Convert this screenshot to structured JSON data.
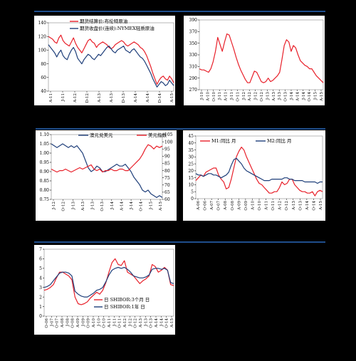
{
  "separators": [
    "sep-top",
    "sep-mid",
    "sep-bottom"
  ],
  "colors": {
    "red": "#e8202a",
    "blue": "#1f3f7a",
    "separator": "#1f4e8c"
  },
  "chart_data": [
    {
      "type": "line",
      "panel": "p1",
      "x_ticks": [
        "A-11",
        "J-11",
        "A-12",
        "D-12",
        "A-13",
        "A-13",
        "D-13",
        "A-14",
        "A-14",
        "D-14",
        "A-15"
      ],
      "ylim": [
        40,
        140
      ],
      "y_ticks": [
        "40",
        "60",
        "80",
        "100",
        "120",
        "140"
      ],
      "legend_position": "top",
      "series": [
        {
          "name": "期货结算价:布伦特原油",
          "color": "#e8202a",
          "values": [
            120,
            118,
            116,
            112,
            110,
            118,
            122,
            114,
            110,
            108,
            106,
            112,
            118,
            110,
            104,
            100,
            96,
            102,
            108,
            114,
            116,
            112,
            110,
            104,
            108,
            110,
            112,
            110,
            108,
            104,
            102,
            104,
            108,
            110,
            112,
            114,
            112,
            108,
            106,
            108,
            110,
            112,
            110,
            108,
            104,
            102,
            98,
            92,
            84,
            76,
            66,
            58,
            50,
            56,
            60,
            62,
            58,
            56,
            62,
            58,
            52
          ]
        },
        {
          "name": "期货收盘价(连续):NYMEX轻质原油",
          "color": "#1f3f7a",
          "values": [
            108,
            104,
            100,
            96,
            90,
            96,
            100,
            92,
            88,
            86,
            94,
            100,
            104,
            98,
            88,
            84,
            80,
            86,
            90,
            94,
            92,
            88,
            86,
            90,
            94,
            92,
            96,
            100,
            104,
            106,
            102,
            98,
            96,
            100,
            102,
            104,
            106,
            100,
            98,
            96,
            100,
            102,
            98,
            94,
            90,
            88,
            84,
            78,
            72,
            66,
            58,
            52,
            46,
            50,
            54,
            52,
            48,
            50,
            56,
            52,
            48
          ]
        }
      ]
    },
    {
      "type": "line",
      "panel": "p2",
      "x_ticks": [
        "J-10",
        "A-10",
        "O-10",
        "J-11",
        "A-11",
        "J-11",
        "O-11",
        "J-12",
        "A-12",
        "J-12",
        "O-12",
        "J-13",
        "A-13",
        "J-13",
        "O-13",
        "J-14",
        "A-14",
        "J-14",
        "O-14",
        "J-15",
        "A-15"
      ],
      "ylim": [
        270,
        390
      ],
      "y_ticks": [
        "270",
        "290",
        "310",
        "330",
        "350",
        "370",
        "390"
      ],
      "series": [
        {
          "color": "#e8202a",
          "values": [
            306,
            304,
            304,
            302,
            300,
            306,
            318,
            336,
            360,
            348,
            336,
            352,
            366,
            364,
            352,
            340,
            326,
            314,
            304,
            296,
            288,
            282,
            282,
            292,
            302,
            300,
            292,
            284,
            282,
            284,
            290,
            284,
            286,
            290,
            294,
            300,
            322,
            346,
            356,
            352,
            336,
            346,
            342,
            330,
            320,
            316,
            312,
            310,
            306,
            306,
            300,
            294,
            290,
            286,
            282
          ]
        }
      ]
    },
    {
      "type": "line",
      "panel": "p3",
      "x_ticks": [
        "J-12",
        "O-12",
        "J-13",
        "A-13",
        "J-13",
        "O-13",
        "J-14",
        "A-14",
        "J-14",
        "O-14",
        "J-15",
        "A-15"
      ],
      "ylim": [
        0.75,
        1.1
      ],
      "y_ticks": [
        "0.75",
        "0.80",
        "0.85",
        "0.90",
        "0.95",
        "1.00",
        "1.05",
        "1.10"
      ],
      "y2lim": [
        60,
        105
      ],
      "y2_ticks": [
        "60",
        "65",
        "70",
        "75",
        "80",
        "85",
        "90",
        "95",
        "100",
        "105"
      ],
      "legend_position": "top",
      "series": [
        {
          "name": "澳元兑美元",
          "color": "#1f3f7a",
          "axis": "left",
          "values": [
            1.05,
            1.04,
            1.03,
            1.04,
            1.05,
            1.04,
            1.03,
            1.04,
            1.03,
            1.04,
            1.02,
            1.0,
            0.96,
            0.92,
            0.9,
            0.91,
            0.93,
            0.92,
            0.9,
            0.9,
            0.91,
            0.92,
            0.93,
            0.94,
            0.93,
            0.93,
            0.94,
            0.92,
            0.9,
            0.87,
            0.85,
            0.83,
            0.8,
            0.79,
            0.8,
            0.78,
            0.77,
            0.76,
            0.77,
            0.76
          ]
        },
        {
          "name": "美元指数",
          "color": "#e8202a",
          "axis": "right",
          "values": [
            81,
            80,
            79,
            80,
            80,
            81,
            80,
            79,
            80,
            81,
            82,
            81,
            82,
            83,
            84,
            81,
            80,
            81,
            79,
            80,
            80,
            81,
            80,
            80,
            81,
            81,
            80,
            80,
            82,
            84,
            86,
            88,
            91,
            95,
            98,
            97,
            95,
            97,
            96,
            97
          ]
        }
      ]
    },
    {
      "type": "line",
      "panel": "p4",
      "x_ticks": [
        "A-06",
        "O-06",
        "A-07",
        "O-07",
        "A-08",
        "O-08",
        "A-09",
        "O-09",
        "A-10",
        "O-10",
        "A-11",
        "O-11",
        "A-12",
        "O-12",
        "A-13",
        "O-13",
        "A-14",
        "O-14",
        "A-15"
      ],
      "ylim": [
        0,
        45
      ],
      "y_ticks": [
        "0",
        "5",
        "10",
        "15",
        "20",
        "25",
        "30",
        "35",
        "40",
        "45"
      ],
      "legend_position": "top",
      "series": [
        {
          "name": "M1:同比 月",
          "color": "#e8202a",
          "values": [
            13,
            15,
            17,
            16,
            19,
            20,
            21,
            22,
            22,
            17,
            14,
            12,
            7,
            8,
            14,
            22,
            30,
            34,
            37,
            35,
            30,
            26,
            22,
            18,
            14,
            11,
            10,
            8,
            6,
            4,
            4,
            5,
            5,
            8,
            12,
            10,
            11,
            14,
            14,
            10,
            8,
            6,
            5,
            5,
            4,
            4,
            5,
            2,
            5,
            6,
            5
          ]
        },
        {
          "name": "M2:同比 月",
          "color": "#1f3f7a",
          "values": [
            18,
            17,
            17,
            16,
            17,
            18,
            18,
            17,
            17,
            16,
            15,
            16,
            17,
            19,
            24,
            28,
            29,
            27,
            25,
            22,
            20,
            19,
            18,
            17,
            16,
            15,
            14,
            13,
            13,
            13,
            14,
            14,
            14,
            14,
            14,
            15,
            15,
            14,
            14,
            13,
            13,
            13,
            13,
            12,
            12,
            12,
            12,
            12,
            11,
            12,
            12
          ]
        }
      ]
    },
    {
      "type": "line",
      "panel": "p5",
      "x_ticks": [
        "O-06",
        "J-07",
        "O-07",
        "A-08",
        "J-08",
        "O-08",
        "A-09",
        "J-09",
        "O-09",
        "A-10",
        "J-10",
        "O-10",
        "A-11",
        "J-11",
        "O-11",
        "A-12",
        "J-12",
        "O-12",
        "A-13",
        "J-13",
        "O-13",
        "A-14",
        "J-14",
        "O-14",
        "A-15"
      ],
      "ylim": [
        0,
        7
      ],
      "y_ticks": [
        "0",
        "1",
        "2",
        "3",
        "4",
        "5",
        "6",
        "7"
      ],
      "legend_position": "bottom-left",
      "series": [
        {
          "name": "日 SHIBOR:3个月 日",
          "color": "#e8202a",
          "values": [
            2.7,
            2.8,
            3.0,
            3.3,
            4.0,
            4.6,
            4.6,
            4.4,
            4.2,
            3.8,
            2.0,
            1.3,
            1.2,
            1.3,
            1.5,
            1.9,
            2.2,
            2.5,
            2.3,
            2.7,
            3.5,
            4.6,
            5.6,
            6.0,
            5.4,
            5.3,
            5.8,
            4.6,
            4.4,
            4.2,
            3.8,
            3.4,
            3.7,
            3.9,
            4.2,
            5.4,
            5.2,
            4.6,
            4.8,
            5.1,
            4.8,
            3.3,
            3.2
          ]
        },
        {
          "name": "日 SHIBOR:1年 日",
          "color": "#1f3f7a",
          "values": [
            3.0,
            3.1,
            3.3,
            3.7,
            4.1,
            4.5,
            4.6,
            4.6,
            4.5,
            4.2,
            2.6,
            2.3,
            2.1,
            2.0,
            2.0,
            2.2,
            2.4,
            2.7,
            2.8,
            3.0,
            3.6,
            4.3,
            4.8,
            5.0,
            5.1,
            5.0,
            5.1,
            4.9,
            4.6,
            4.2,
            4.1,
            4.0,
            4.0,
            4.1,
            4.3,
            4.9,
            5.0,
            5.0,
            4.9,
            5.0,
            4.8,
            3.5,
            3.4
          ]
        }
      ]
    }
  ]
}
